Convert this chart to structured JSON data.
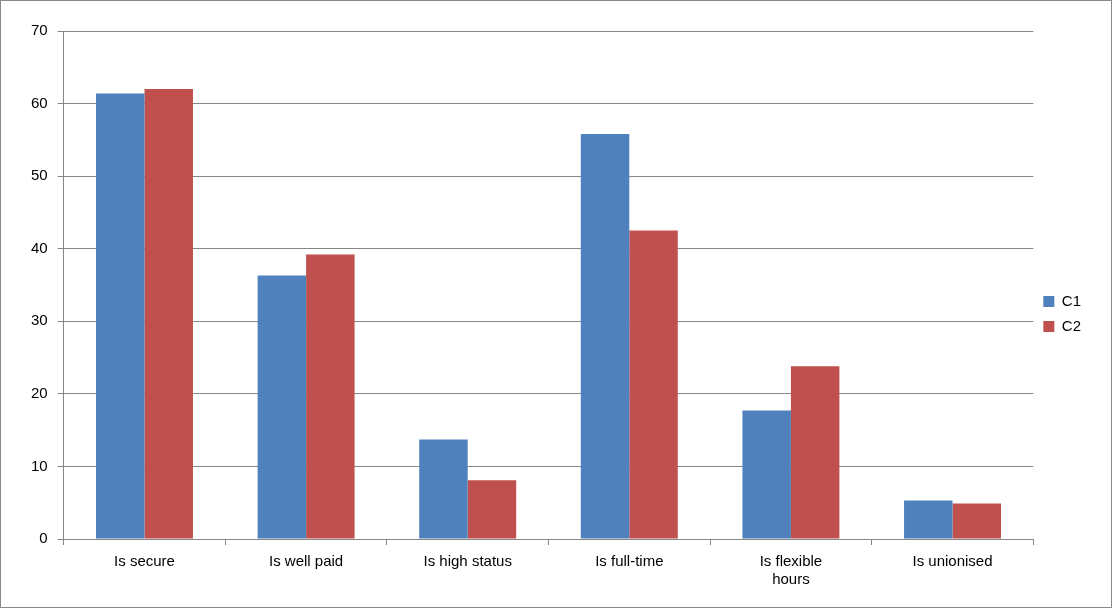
{
  "chart_data": {
    "type": "bar",
    "categories": [
      "Is secure",
      "Is well paid",
      "Is high status",
      "Is full-time",
      "Is flexible hours",
      "Is unionised"
    ],
    "series": [
      {
        "name": "C1",
        "color": "#4f81bd",
        "values": [
          61.4,
          36.3,
          13.7,
          55.8,
          17.7,
          5.3
        ]
      },
      {
        "name": "C2",
        "color": "#c0504d",
        "values": [
          62.0,
          39.2,
          8.1,
          42.5,
          23.8,
          4.9
        ]
      }
    ],
    "ylim": [
      0,
      70
    ],
    "yticks": [
      0,
      10,
      20,
      30,
      40,
      50,
      60,
      70
    ],
    "grid": "y",
    "legend": "right"
  }
}
